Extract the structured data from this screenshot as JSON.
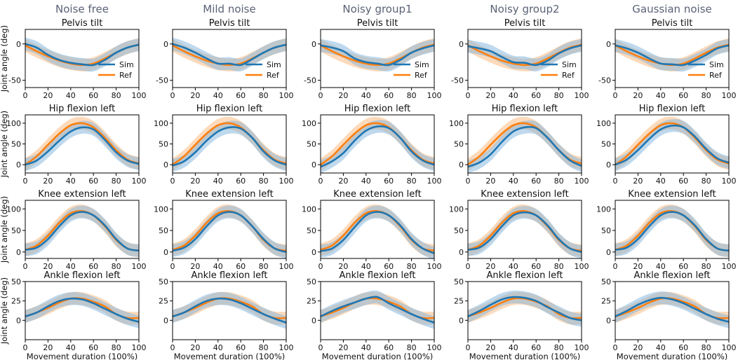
{
  "chart_data": {
    "type": "line",
    "column_titles": [
      "Noise free",
      "Mild noise",
      "Noisy group1",
      "Noisy group2",
      "Gaussian noise"
    ],
    "rows": [
      {
        "title": "Pelvis tilt",
        "ylim": [
          -60,
          20
        ],
        "yticks": [
          -50,
          0
        ],
        "legend": true
      },
      {
        "title": "Hip flexion left",
        "ylim": [
          -20,
          120
        ],
        "yticks": [
          0,
          50,
          100
        ],
        "legend": false
      },
      {
        "title": "Knee extension left",
        "ylim": [
          -15,
          120
        ],
        "yticks": [
          0,
          50,
          100
        ],
        "legend": false
      },
      {
        "title": "Ankle flexion left",
        "ylim": [
          -25,
          50
        ],
        "yticks": [
          0,
          25,
          50
        ],
        "legend": false
      }
    ],
    "xlim": [
      0,
      100
    ],
    "xticks": [
      0,
      20,
      40,
      60,
      80,
      100
    ],
    "xlabel": "Movement duration (100%)",
    "ylabel": "Joint angle (deg)",
    "series": [
      {
        "name": "Sim",
        "color": "#1f77b4",
        "band_color": "#7fb3de"
      },
      {
        "name": "Ref",
        "color": "#ff7f0e",
        "band_color": "#f9b678"
      }
    ],
    "x": [
      0,
      10,
      20,
      30,
      40,
      50,
      60,
      70,
      80,
      90,
      100
    ],
    "sim": {
      "Pelvis tilt": [
        [
          0,
          -5,
          -15,
          -22,
          -26,
          -28,
          -29,
          -22,
          -12,
          -5,
          -1
        ],
        [
          0,
          -5,
          -12,
          -20,
          -27,
          -27,
          -29,
          -21,
          -12,
          -5,
          -1
        ],
        [
          -2,
          -5,
          -10,
          -20,
          -25,
          -27,
          -29,
          -22,
          -12,
          -6,
          -2
        ],
        [
          -3,
          -6,
          -10,
          -18,
          -25,
          -26,
          -29,
          -23,
          -13,
          -6,
          -2
        ],
        [
          -2,
          -6,
          -12,
          -20,
          -27,
          -28,
          -29,
          -23,
          -15,
          -6,
          -2
        ]
      ],
      "Hip flexion left": [
        [
          0,
          10,
          32,
          58,
          80,
          90,
          85,
          60,
          30,
          10,
          2
        ],
        [
          -2,
          8,
          30,
          58,
          80,
          90,
          87,
          65,
          32,
          10,
          0
        ],
        [
          -5,
          8,
          28,
          58,
          82,
          92,
          88,
          65,
          32,
          10,
          0
        ],
        [
          -5,
          5,
          25,
          55,
          80,
          90,
          88,
          65,
          35,
          10,
          -3
        ],
        [
          0,
          12,
          35,
          62,
          85,
          94,
          90,
          68,
          38,
          15,
          5
        ]
      ],
      "Knee extension left": [
        [
          5,
          10,
          30,
          60,
          85,
          93,
          85,
          62,
          30,
          8,
          3
        ],
        [
          3,
          10,
          30,
          60,
          85,
          93,
          85,
          60,
          30,
          8,
          0
        ],
        [
          2,
          8,
          28,
          58,
          85,
          93,
          85,
          62,
          30,
          8,
          -3
        ],
        [
          5,
          10,
          30,
          60,
          85,
          92,
          85,
          62,
          30,
          8,
          0
        ],
        [
          5,
          10,
          30,
          60,
          85,
          93,
          85,
          62,
          30,
          8,
          3
        ]
      ],
      "Ankle flexion left": [
        [
          5,
          10,
          18,
          25,
          28,
          27,
          22,
          15,
          8,
          2,
          -2
        ],
        [
          5,
          10,
          18,
          25,
          28,
          27,
          22,
          15,
          8,
          2,
          -3
        ],
        [
          5,
          12,
          18,
          23,
          28,
          30,
          22,
          15,
          8,
          2,
          -3
        ],
        [
          5,
          12,
          20,
          27,
          30,
          29,
          25,
          17,
          10,
          3,
          0
        ],
        [
          5,
          12,
          20,
          26,
          29,
          27,
          22,
          15,
          8,
          2,
          -2
        ]
      ]
    },
    "ref": {
      "Pelvis tilt": [
        -2,
        -10,
        -17,
        -23,
        -27,
        -29,
        -27,
        -20,
        -12,
        -5,
        -1
      ],
      "Hip flexion left": [
        0,
        20,
        48,
        75,
        95,
        100,
        90,
        65,
        35,
        12,
        3
      ],
      "Knee extension left": [
        5,
        15,
        38,
        68,
        90,
        95,
        85,
        60,
        28,
        8,
        3
      ],
      "Ankle flexion left": [
        5,
        10,
        16,
        23,
        28,
        28,
        24,
        18,
        8,
        3,
        3
      ]
    }
  }
}
